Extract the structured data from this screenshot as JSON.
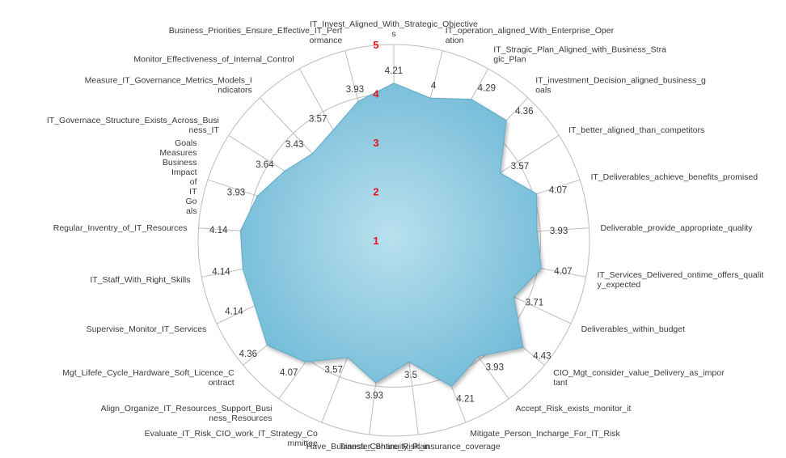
{
  "chart_data": {
    "type": "radar",
    "rlim": [
      1,
      5
    ],
    "ticks": [
      "1",
      "2",
      "3",
      "4",
      "5"
    ],
    "tick_color": "#e8141c",
    "fill_color": "#7dc3dd",
    "grid": true,
    "categories": [
      "IT_Invest_Aligned_With_Strategic_Objective s",
      "IT_operation_aligned_With_Enterprise_Oper ation",
      "IT_Stragic_Plan_Aligned_with_Business_Stra gic_Plan",
      "IT_investment_Decision_aligned_business_g oals",
      "IT_better_aligned_than_competitors",
      "IT_Deliverables_achieve_benefits_promised",
      "Deliverable_provide_appropriate_quality",
      "IT_Services_Delivered_ontime_offers_qualit y_expected",
      "Deliverables_within_budget",
      "CIO_Mgt_consider_value_Delivery_as_impor tant",
      "Accept_Risk_exists_monitor_it",
      "Mitigate_Person_Incharge_For_IT_Risk",
      "Transfer_Share_Risk_insurance_coverage",
      "Have_Business_Continuity_Plan",
      "Evaluate_IT_Risk_CIO_work_IT_Strategy_Co mmittee",
      "Align_Organize_IT_Resources_Support_Busi ness_Resources",
      "Mgt_Lifefe_Cycle_Hardware_Soft_Licence_C ontract",
      "Supervise_Monitor_IT_Services",
      "IT_Staff_With_Right_Skills",
      "Regular_Inventry_of_IT_Resources",
      "Goals Measures Business Impact of IT Go als",
      "IT_Governace_Structure_Exists_Across_Busi ness_IT",
      "Measure_IT_Governance_Metrics_Models_I ndicators",
      "Monitor_Effectiveness_of_Internal_Control",
      "Business_Priorities_Ensure_Effective_IT_Perf ormance"
    ],
    "values": [
      4.21,
      4,
      4.29,
      4.36,
      3.57,
      4.07,
      3.93,
      4.07,
      3.71,
      4.43,
      3.93,
      4.21,
      3.5,
      3.93,
      3.57,
      4.07,
      4.36,
      4.14,
      4.14,
      4.14,
      3.93,
      3.64,
      3.43,
      3.57,
      3.93
    ],
    "value_labels": [
      "4.21",
      "4",
      "4.29",
      "4.36",
      "3.57",
      "4.07",
      "3.93",
      "4.07",
      "3.71",
      "4.43",
      "3.93",
      "4.21",
      "3.5",
      "3.93",
      "3.57",
      "4.07",
      "4.36",
      "4.14",
      "4.14",
      "4.14",
      "3.93",
      "3.64",
      "3.43",
      "3.57",
      "3.93"
    ]
  }
}
